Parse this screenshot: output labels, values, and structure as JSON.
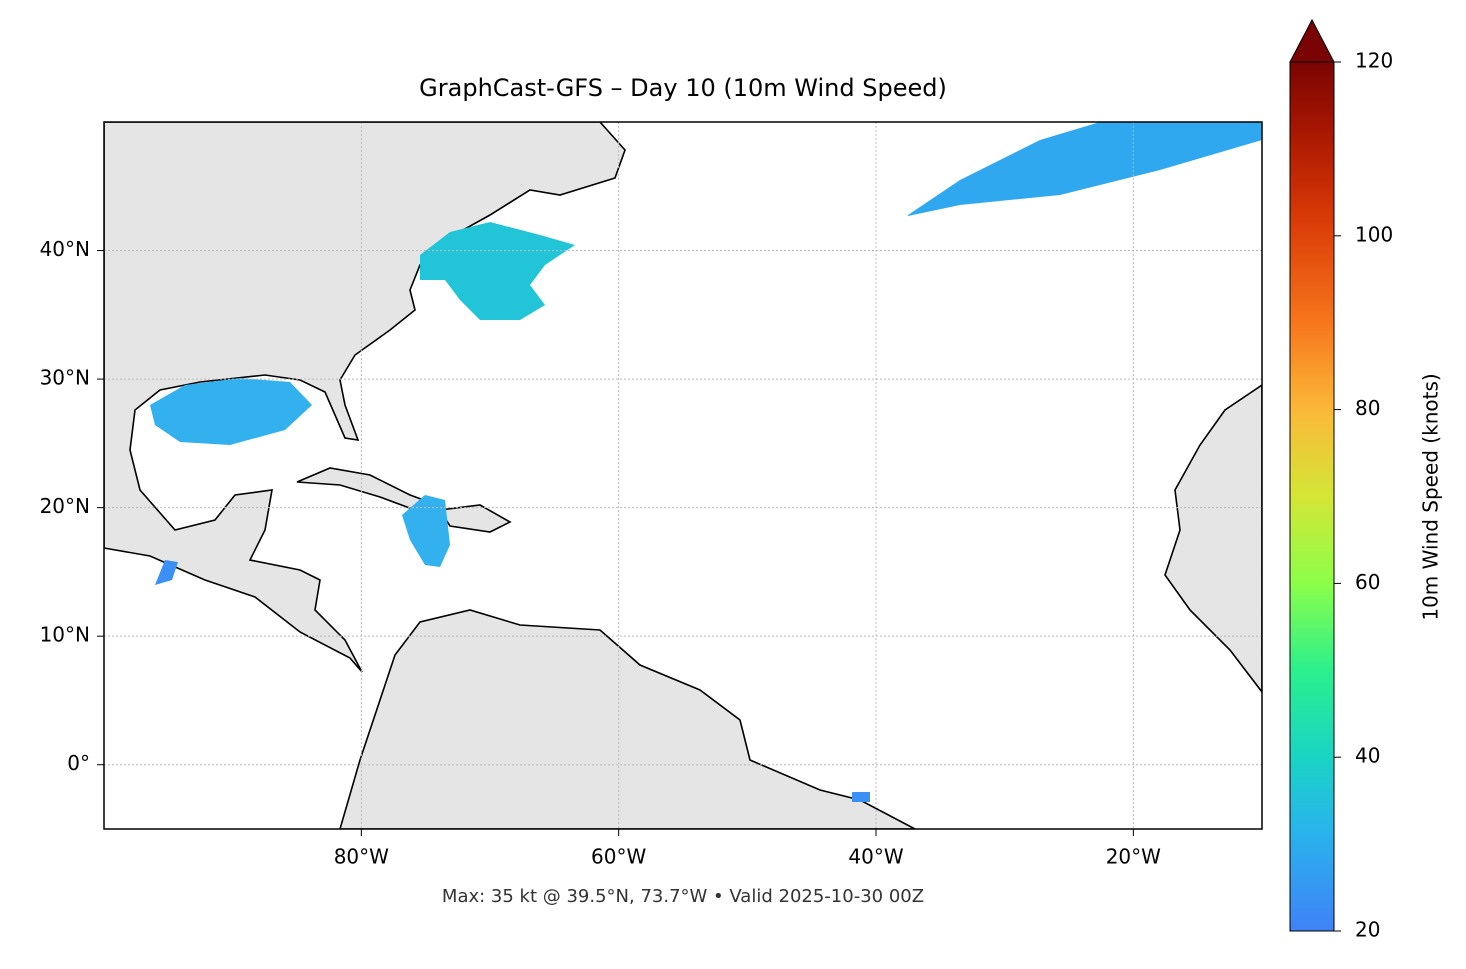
{
  "chart_data": {
    "type": "map",
    "title": "GraphCast-GFS – Day 10 (10m Wind Speed)",
    "footer": "Max: 35 kt @ 39.5°N, 73.7°W • Valid 2025-10-30 00Z",
    "xlim": [
      -100,
      -10
    ],
    "ylim": [
      -5,
      50
    ],
    "xticks": [
      {
        "value": -80,
        "label": "80°W"
      },
      {
        "value": -60,
        "label": "60°W"
      },
      {
        "value": -40,
        "label": "40°W"
      },
      {
        "value": -20,
        "label": "20°W"
      }
    ],
    "yticks": [
      {
        "value": 0,
        "label": "0°"
      },
      {
        "value": 10,
        "label": "10°N"
      },
      {
        "value": 20,
        "label": "20°N"
      },
      {
        "value": 30,
        "label": "30°N"
      },
      {
        "value": 40,
        "label": "40°N"
      }
    ],
    "grid": true,
    "colorbar": {
      "label": "10m Wind Speed (knots)",
      "lim": [
        20,
        120
      ],
      "ticks": [
        20,
        40,
        60,
        80,
        100,
        120
      ],
      "extend": "max"
    }
  }
}
